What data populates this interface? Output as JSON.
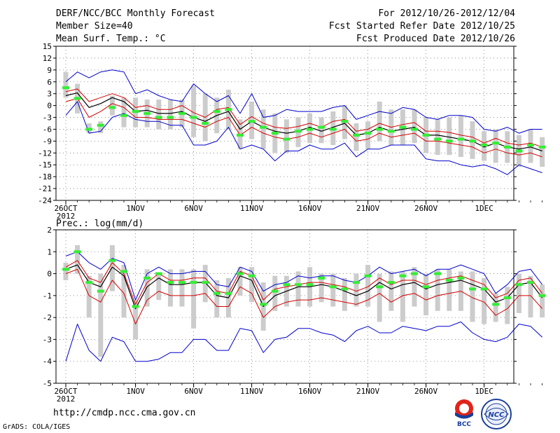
{
  "header": {
    "title": "DERF/NCC/BCC Monthly Forecast",
    "member_size": "Member Size=40",
    "variable": "Mean Surf. Temp.: °C",
    "period": "For 2012/10/26-2012/12/04",
    "started": "Fcst Started Refer Date 2012/10/25",
    "produced": "Fcst Produced Date 2012/10/26"
  },
  "footer": {
    "url": "http://cmdp.ncc.cma.gov.cn",
    "credit": "GrADS: COLA/IGES"
  },
  "logos": {
    "left_text": "BCC",
    "right_text": "NCC"
  },
  "colors": {
    "ensemble_mean": "#000000",
    "spread": "#d40000",
    "extremes": "#0000cc",
    "climatology": "#33ee33",
    "box": "#cccccc"
  },
  "chart_data": [
    {
      "type": "line",
      "title": "Mean Surf. Temp.: °C",
      "ylim": [
        -24,
        15
      ],
      "yticks": [
        15,
        12,
        9,
        6,
        3,
        0,
        -3,
        -6,
        -9,
        -12,
        -15,
        -18,
        -21,
        -24
      ],
      "xtick_labels": [
        {
          "day": 0,
          "label": "26OCT",
          "sub": "2012"
        },
        {
          "day": 6,
          "label": "1NOV"
        },
        {
          "day": 11,
          "label": "6NOV"
        },
        {
          "day": 16,
          "label": "11NOV"
        },
        {
          "day": 21,
          "label": "16NOV"
        },
        {
          "day": 26,
          "label": "21NOV"
        },
        {
          "day": 31,
          "label": "26NOV"
        },
        {
          "day": 36,
          "label": "1DEC"
        }
      ],
      "series": [
        {
          "name": "mean",
          "values": [
            2.5,
            3.2,
            -0.5,
            0.5,
            2.0,
            1.0,
            -1.5,
            -1.2,
            -2.0,
            -2.0,
            -1.5,
            -3.0,
            -4.0,
            -2.5,
            -1.5,
            -6.0,
            -4.0,
            -5.5,
            -6.5,
            -7.0,
            -6.5,
            -5.5,
            -6.5,
            -5.5,
            -4.5,
            -7.5,
            -7.0,
            -5.5,
            -6.5,
            -6.0,
            -5.5,
            -7.5,
            -7.5,
            -8.0,
            -8.5,
            -9.0,
            -10.5,
            -9.5,
            -10.5,
            -11.0,
            -10.5,
            -11.5
          ]
        },
        {
          "name": "upper_spread",
          "values": [
            3.5,
            4.2,
            1.0,
            2.0,
            3.0,
            2.0,
            -0.5,
            0.0,
            -1.0,
            -1.0,
            0.0,
            -1.8,
            -3.0,
            -1.0,
            -0.5,
            -4.8,
            -2.8,
            -4.5,
            -5.5,
            -5.8,
            -5.3,
            -4.5,
            -5.5,
            -4.0,
            -3.5,
            -6.5,
            -6.0,
            -4.5,
            -5.5,
            -4.8,
            -4.3,
            -6.5,
            -6.5,
            -6.8,
            -7.5,
            -8.0,
            -9.5,
            -8.3,
            -9.5,
            -10.0,
            -9.5,
            -10.5
          ]
        },
        {
          "name": "lower_spread",
          "values": [
            1.0,
            1.8,
            -3.0,
            -1.5,
            0.5,
            -0.5,
            -3.0,
            -3.0,
            -3.5,
            -3.5,
            -3.5,
            -4.5,
            -5.5,
            -4.0,
            -3.0,
            -7.5,
            -5.5,
            -7.0,
            -8.0,
            -8.5,
            -8.0,
            -7.0,
            -8.0,
            -7.0,
            -6.0,
            -9.0,
            -8.5,
            -7.0,
            -8.0,
            -7.5,
            -7.0,
            -9.0,
            -9.0,
            -9.5,
            -10.0,
            -10.5,
            -12.0,
            -11.0,
            -12.0,
            -12.5,
            -12.0,
            -13.0
          ]
        },
        {
          "name": "maximum",
          "values": [
            6.0,
            8.5,
            7.0,
            8.5,
            9.0,
            8.5,
            3.0,
            4.0,
            2.5,
            1.5,
            1.0,
            5.5,
            3.0,
            1.0,
            2.5,
            -2.0,
            3.0,
            -3.0,
            -2.5,
            -1.0,
            -1.5,
            -1.5,
            -1.5,
            -0.5,
            0.0,
            -3.5,
            -2.5,
            -1.5,
            -2.0,
            -0.5,
            -1.0,
            -3.0,
            -3.5,
            -2.5,
            -2.5,
            -3.0,
            -6.0,
            -6.5,
            -5.5,
            -7.0,
            -6.0,
            -6.0
          ]
        },
        {
          "name": "minimum",
          "values": [
            -2.5,
            1.0,
            -7.0,
            -6.5,
            -3.0,
            -2.0,
            -3.5,
            -4.0,
            -4.0,
            -5.0,
            -5.0,
            -10.0,
            -10.0,
            -9.0,
            -5.5,
            -11.0,
            -10.0,
            -11.0,
            -14.0,
            -11.5,
            -11.5,
            -10.0,
            -11.0,
            -11.0,
            -9.5,
            -13.0,
            -11.0,
            -11.0,
            -10.0,
            -10.0,
            -10.0,
            -13.5,
            -14.0,
            -14.0,
            -15.0,
            -15.5,
            -15.0,
            -16.0,
            -17.5,
            -15.0,
            -16.0,
            -17.0
          ]
        },
        {
          "name": "climatology",
          "values": [
            4.5,
            1.8,
            -6.0,
            -5.0,
            -0.5,
            -2.5,
            -1.5,
            -2.0,
            -3.0,
            -3.0,
            -2.0,
            -3.0,
            -4.5,
            -1.5,
            -1.0,
            -7.5,
            -4.0,
            -5.5,
            -7.0,
            -8.5,
            -6.5,
            -6.0,
            -5.5,
            -6.0,
            -4.0,
            -7.5,
            -7.0,
            -6.0,
            -6.5,
            -5.5,
            -6.0,
            -7.5,
            -8.5,
            -9.0,
            -8.5,
            -9.0,
            -10.0,
            -9.5,
            -10.5,
            -11.5,
            -10.0,
            -10.5
          ]
        },
        {
          "name": "box_top",
          "values": [
            8.5,
            5.5,
            -4.5,
            -4.0,
            2.5,
            2.0,
            2.0,
            1.5,
            1.5,
            1.5,
            1.5,
            5.0,
            3.0,
            2.0,
            4.0,
            -3.5,
            1.0,
            -1.0,
            -2.0,
            -3.5,
            -3.0,
            -2.0,
            -3.0,
            -1.5,
            0.0,
            -4.5,
            -4.0,
            1.0,
            -1.0,
            -1.0,
            -1.0,
            -3.0,
            -3.5,
            -3.0,
            -2.5,
            -4.0,
            -6.5,
            -6.0,
            -6.5,
            -7.5,
            -6.0,
            -8.0
          ]
        },
        {
          "name": "box_bottom",
          "values": [
            2.0,
            -2.0,
            -7.0,
            -7.0,
            -2.5,
            -5.5,
            -5.5,
            -5.5,
            -6.0,
            -6.0,
            -5.5,
            -8.0,
            -9.0,
            -7.0,
            -6.0,
            -11.0,
            -8.5,
            -11.0,
            -12.0,
            -12.0,
            -10.5,
            -9.5,
            -9.5,
            -10.0,
            -8.5,
            -11.5,
            -11.0,
            -9.0,
            -10.0,
            -10.0,
            -9.5,
            -12.0,
            -12.5,
            -12.5,
            -13.0,
            -13.5,
            -14.0,
            -14.5,
            -14.5,
            -15.5,
            -14.5,
            -15.5
          ]
        }
      ]
    },
    {
      "type": "line",
      "title": "Prec.: log(mm/d)",
      "ylim": [
        -5,
        2
      ],
      "yticks": [
        2,
        1,
        0,
        -1,
        -2,
        -3,
        -4,
        -5
      ],
      "xtick_labels": [
        {
          "day": 0,
          "label": "26OCT",
          "sub": "2012"
        },
        {
          "day": 6,
          "label": "1NOV"
        },
        {
          "day": 11,
          "label": "6NOV"
        },
        {
          "day": 16,
          "label": "11NOV"
        },
        {
          "day": 21,
          "label": "16NOV"
        },
        {
          "day": 26,
          "label": "21NOV"
        },
        {
          "day": 31,
          "label": "26NOV"
        },
        {
          "day": 36,
          "label": "1DEC"
        }
      ],
      "series": [
        {
          "name": "mean",
          "values": [
            0.2,
            0.4,
            -0.4,
            -0.6,
            0.3,
            -0.1,
            -1.6,
            -0.6,
            -0.2,
            -0.5,
            -0.5,
            -0.4,
            -0.4,
            -1.0,
            -1.1,
            -0.1,
            -0.3,
            -1.5,
            -1.0,
            -0.8,
            -0.6,
            -0.6,
            -0.5,
            -0.6,
            -0.8,
            -1.0,
            -0.8,
            -0.4,
            -0.7,
            -0.5,
            -0.4,
            -0.7,
            -0.5,
            -0.4,
            -0.3,
            -0.5,
            -0.7,
            -1.3,
            -1.1,
            -0.5,
            -0.4,
            -1.1
          ]
        },
        {
          "name": "upper_spread",
          "values": [
            0.3,
            0.6,
            -0.2,
            -0.4,
            0.5,
            0.0,
            -1.4,
            -0.4,
            0.0,
            -0.3,
            -0.3,
            -0.2,
            -0.2,
            -0.8,
            -0.9,
            0.1,
            -0.1,
            -1.2,
            -0.7,
            -0.6,
            -0.5,
            -0.4,
            -0.4,
            -0.5,
            -0.6,
            -0.8,
            -0.6,
            -0.2,
            -0.5,
            -0.3,
            -0.3,
            -0.5,
            -0.3,
            -0.2,
            -0.1,
            -0.3,
            -0.5,
            -1.1,
            -0.9,
            -0.3,
            -0.2,
            -0.9
          ]
        },
        {
          "name": "lower_spread",
          "values": [
            0.0,
            0.2,
            -1.0,
            -1.3,
            -0.3,
            -0.9,
            -2.3,
            -1.2,
            -0.8,
            -1.0,
            -1.0,
            -1.0,
            -0.9,
            -1.5,
            -1.5,
            -0.6,
            -0.9,
            -2.0,
            -1.5,
            -1.3,
            -1.2,
            -1.2,
            -1.1,
            -1.2,
            -1.3,
            -1.4,
            -1.2,
            -0.9,
            -1.3,
            -1.0,
            -0.9,
            -1.2,
            -1.0,
            -0.9,
            -0.8,
            -1.1,
            -1.3,
            -1.9,
            -1.6,
            -1.0,
            -1.0,
            -1.6
          ]
        },
        {
          "name": "maximum",
          "values": [
            0.8,
            1.0,
            0.5,
            0.2,
            0.7,
            0.5,
            -1.2,
            0.0,
            0.3,
            0.0,
            0.0,
            0.1,
            0.1,
            -0.5,
            -0.6,
            0.3,
            0.1,
            -0.8,
            -0.5,
            -0.4,
            -0.1,
            -0.2,
            -0.1,
            -0.1,
            -0.3,
            -0.4,
            -0.1,
            0.3,
            0.0,
            0.1,
            0.2,
            -0.1,
            0.2,
            0.2,
            0.4,
            0.2,
            0.0,
            -0.9,
            -0.5,
            0.1,
            0.2,
            -0.5
          ]
        },
        {
          "name": "minimum",
          "values": [
            -4.0,
            -2.3,
            -3.5,
            -4.0,
            -2.9,
            -3.1,
            -4.0,
            -4.0,
            -3.9,
            -3.6,
            -3.6,
            -3.0,
            -3.0,
            -3.5,
            -3.5,
            -2.5,
            -2.6,
            -3.6,
            -3.0,
            -2.9,
            -2.5,
            -2.5,
            -2.7,
            -2.8,
            -3.1,
            -2.6,
            -2.4,
            -2.7,
            -2.7,
            -2.4,
            -2.5,
            -2.6,
            -2.4,
            -2.4,
            -2.2,
            -2.7,
            -3.0,
            -3.1,
            -2.9,
            -2.3,
            -2.4,
            -2.9
          ]
        },
        {
          "name": "climatology",
          "values": [
            0.2,
            1.0,
            -0.4,
            -0.8,
            0.6,
            0.1,
            -1.5,
            -0.2,
            0.0,
            -0.4,
            -0.4,
            -0.4,
            -0.4,
            -0.9,
            -0.9,
            0.0,
            -0.1,
            -1.4,
            -0.8,
            -0.5,
            -0.5,
            -0.5,
            -0.2,
            -0.6,
            -0.7,
            -0.4,
            -0.1,
            -0.6,
            -0.4,
            -0.1,
            0.0,
            -0.6,
            0.0,
            -0.3,
            -0.2,
            -0.7,
            -0.7,
            -1.4,
            -1.1,
            -0.5,
            -0.4,
            -1.0
          ]
        },
        {
          "name": "box_top",
          "values": [
            0.5,
            1.3,
            -0.1,
            0.0,
            1.3,
            0.4,
            -1.2,
            0.2,
            0.0,
            0.2,
            0.2,
            0.2,
            0.4,
            -0.3,
            -0.2,
            0.3,
            0.3,
            -0.4,
            -0.1,
            -0.1,
            0.1,
            0.3,
            0.0,
            0.0,
            -0.2,
            0.0,
            0.4,
            0.0,
            0.1,
            0.1,
            0.3,
            0.0,
            0.2,
            0.2,
            0.1,
            0.1,
            -0.2,
            -0.9,
            -0.6,
            0.0,
            -0.1,
            -0.5
          ]
        },
        {
          "name": "box_bottom",
          "values": [
            -0.3,
            0.0,
            -2.0,
            -3.8,
            -0.8,
            -2.0,
            -3.0,
            -1.5,
            -1.2,
            -1.5,
            -1.5,
            -2.5,
            -1.3,
            -2.0,
            -2.0,
            -1.0,
            -1.3,
            -2.6,
            -1.7,
            -1.5,
            -1.5,
            -1.5,
            -1.3,
            -1.5,
            -1.7,
            -1.5,
            -1.5,
            -2.2,
            -1.7,
            -2.2,
            -1.5,
            -1.9,
            -1.7,
            -1.7,
            -1.7,
            -2.2,
            -2.3,
            -2.2,
            -2.3,
            -1.8,
            -2.0,
            -2.0
          ]
        }
      ]
    }
  ]
}
